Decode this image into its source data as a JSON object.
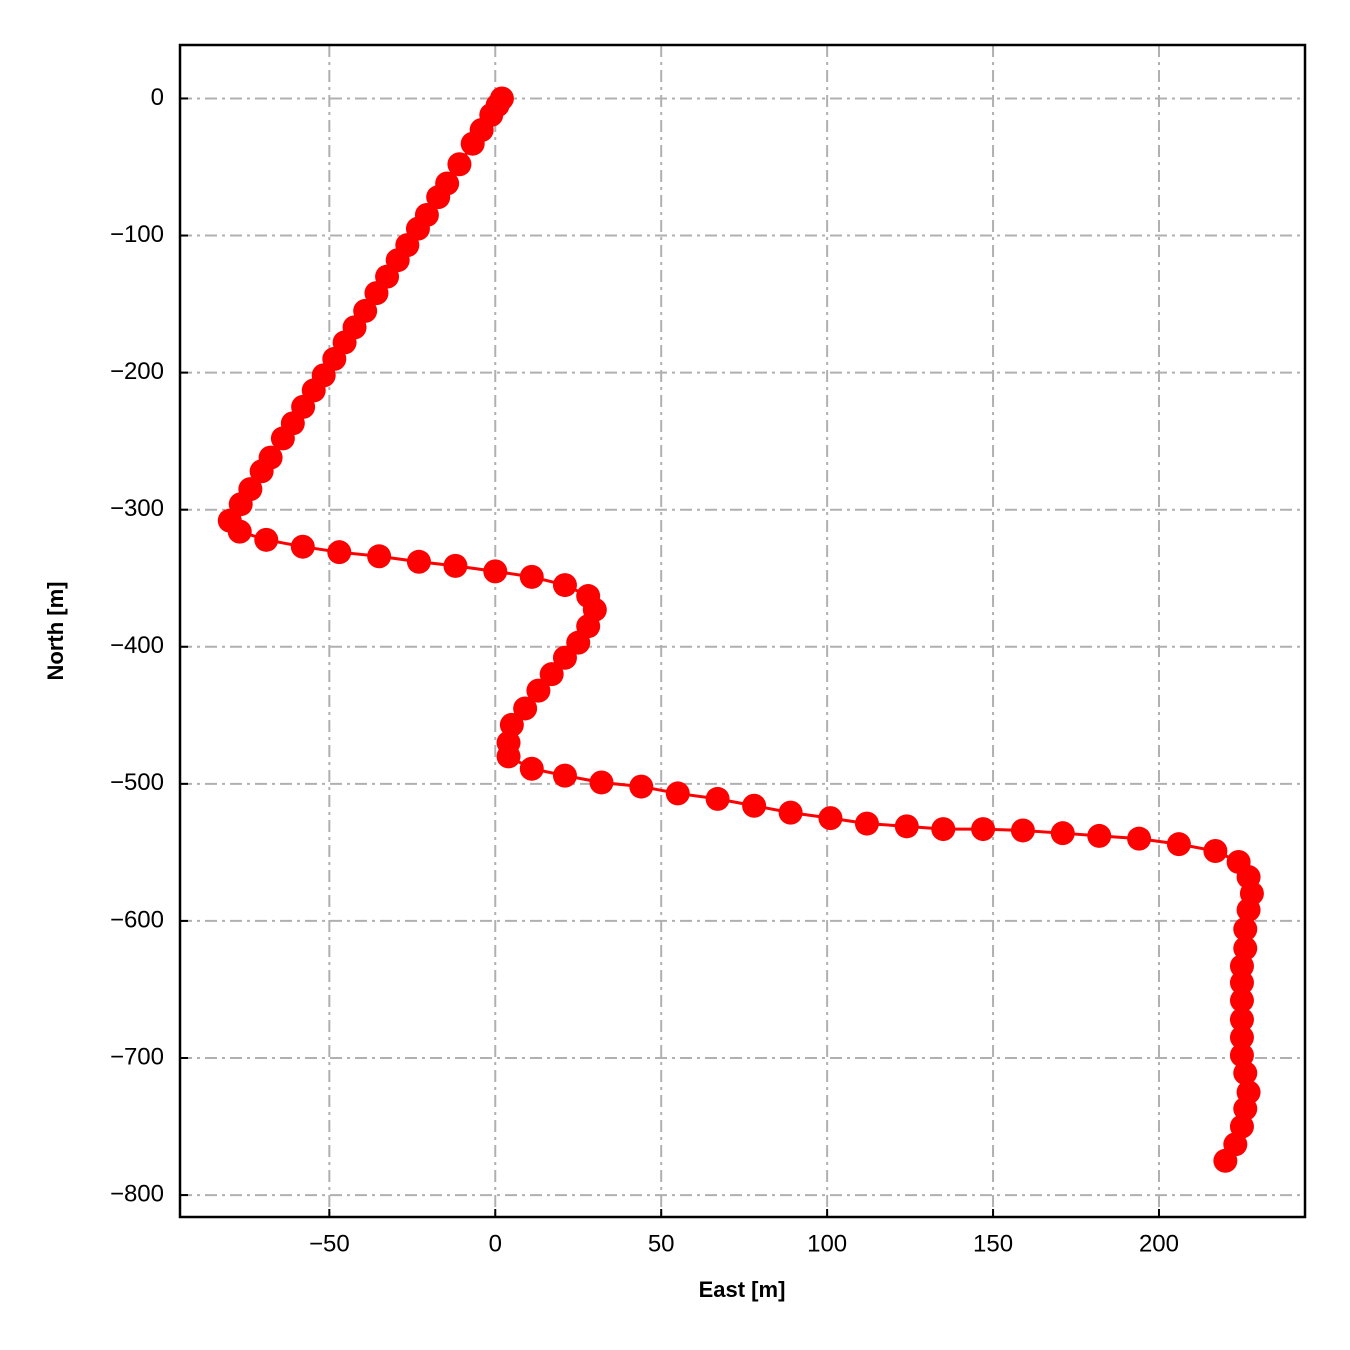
{
  "chart_data": {
    "type": "line",
    "xlabel": "East [m]",
    "ylabel": "North [m]",
    "x": [
      2,
      0.7,
      -1.2,
      -4.1,
      -6.8,
      -10.8,
      -14.5,
      -17.2,
      -20.6,
      -23.3,
      -26.5,
      -29.4,
      -32.6,
      -35.8,
      -39.2,
      -42.4,
      -45.4,
      -48.5,
      -51.7,
      -54.7,
      -57.9,
      -61,
      -64,
      -67.7,
      -70.4,
      -73.8,
      -76.7,
      -80,
      -77,
      -69,
      -58,
      -47,
      -35,
      -23,
      -12,
      0,
      11,
      21,
      28,
      30,
      28,
      25,
      21,
      17,
      13,
      9,
      5,
      4,
      4,
      11,
      21,
      32,
      44,
      55,
      67,
      78,
      89,
      101,
      112,
      124,
      135,
      147,
      159,
      171,
      182,
      194,
      206,
      217,
      224,
      227,
      228,
      227,
      226,
      226,
      225,
      225,
      225,
      225,
      225,
      225,
      226,
      227,
      226,
      225,
      223,
      220
    ],
    "values": [
      0,
      -5,
      -12,
      -23,
      -33,
      -48,
      -62,
      -72,
      -85,
      -95,
      -107,
      -118,
      -130,
      -142,
      -155,
      -167,
      -178,
      -190,
      -202,
      -213,
      -225,
      -237,
      -248,
      -262,
      -272,
      -285,
      -296,
      -308,
      -316,
      -322,
      -327,
      -331,
      -334,
      -338,
      -341,
      -345,
      -349,
      -355,
      -363,
      -373,
      -385,
      -397,
      -408,
      -420,
      -432,
      -445,
      -457,
      -470,
      -480,
      -489,
      -494,
      -499,
      -502,
      -507,
      -511,
      -516,
      -521,
      -525,
      -529,
      -531,
      -533,
      -533,
      -534,
      -536,
      -538,
      -540,
      -544,
      -549,
      -557,
      -568,
      -580,
      -592,
      -606,
      -620,
      -633,
      -645,
      -658,
      -672,
      -685,
      -698,
      -711,
      -725,
      -737,
      -750,
      -763,
      -775
    ],
    "color": "#ff0000",
    "markers": true,
    "xlim": [
      -95,
      244
    ],
    "ylim": [
      -816,
      39
    ],
    "xticks": [
      {
        "value": -50,
        "label": "−50"
      },
      0,
      50,
      100,
      150,
      200
    ],
    "yticks": [
      0,
      {
        "value": -100,
        "label": "−100"
      },
      {
        "value": -200,
        "label": "−200"
      },
      {
        "value": -300,
        "label": "−300"
      },
      {
        "value": -400,
        "label": "−400"
      },
      {
        "value": -500,
        "label": "−500"
      },
      {
        "value": -600,
        "label": "−600"
      },
      {
        "value": -700,
        "label": "−700"
      },
      {
        "value": -800,
        "label": "−800"
      }
    ],
    "grid": true
  }
}
